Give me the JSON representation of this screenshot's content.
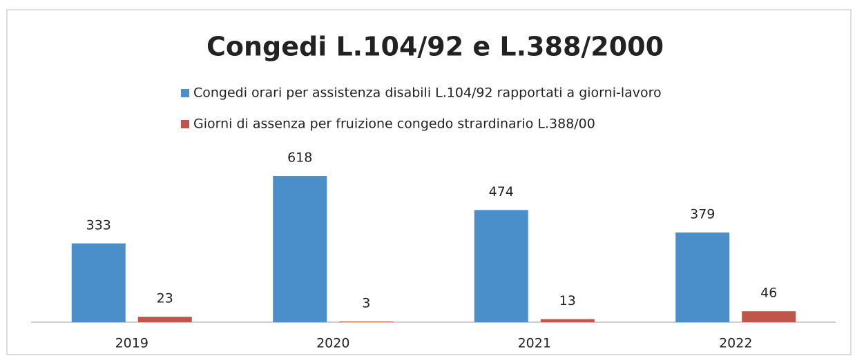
{
  "chart_data": {
    "type": "bar",
    "title": "Congedi L.104/92 e L.388/2000",
    "categories": [
      "2019",
      "2020",
      "2021",
      "2022"
    ],
    "series": [
      {
        "name": "Congedi orari per assistenza disabili L.104/92 rapportati a giorni-lavoro",
        "color": "#4a8fc9",
        "values": [
          333,
          618,
          474,
          379
        ]
      },
      {
        "name": "Giorni di assenza per fruizione congedo strardinario L.388/00",
        "color": "#c0564a",
        "values": [
          23,
          3,
          13,
          46
        ]
      }
    ],
    "legend": "top"
  }
}
